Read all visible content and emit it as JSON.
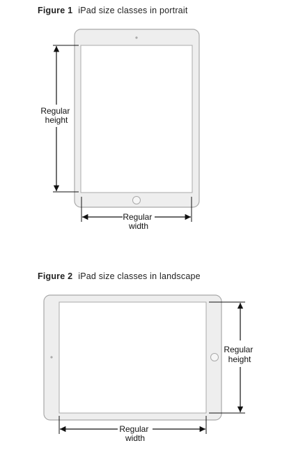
{
  "figures": [
    {
      "number": "Figure 1",
      "caption": "iPad size classes in portrait",
      "height_label": [
        "Regular",
        "height"
      ],
      "width_label": [
        "Regular",
        "width"
      ]
    },
    {
      "number": "Figure 2",
      "caption": "iPad size classes in landscape",
      "height_label": [
        "Regular",
        "height"
      ],
      "width_label": [
        "Regular",
        "width"
      ]
    }
  ],
  "colors": {
    "device_fill": "#eeeeee",
    "device_stroke": "#a9a9a9",
    "screen_fill": "#ffffff",
    "arrow": "#111111"
  }
}
